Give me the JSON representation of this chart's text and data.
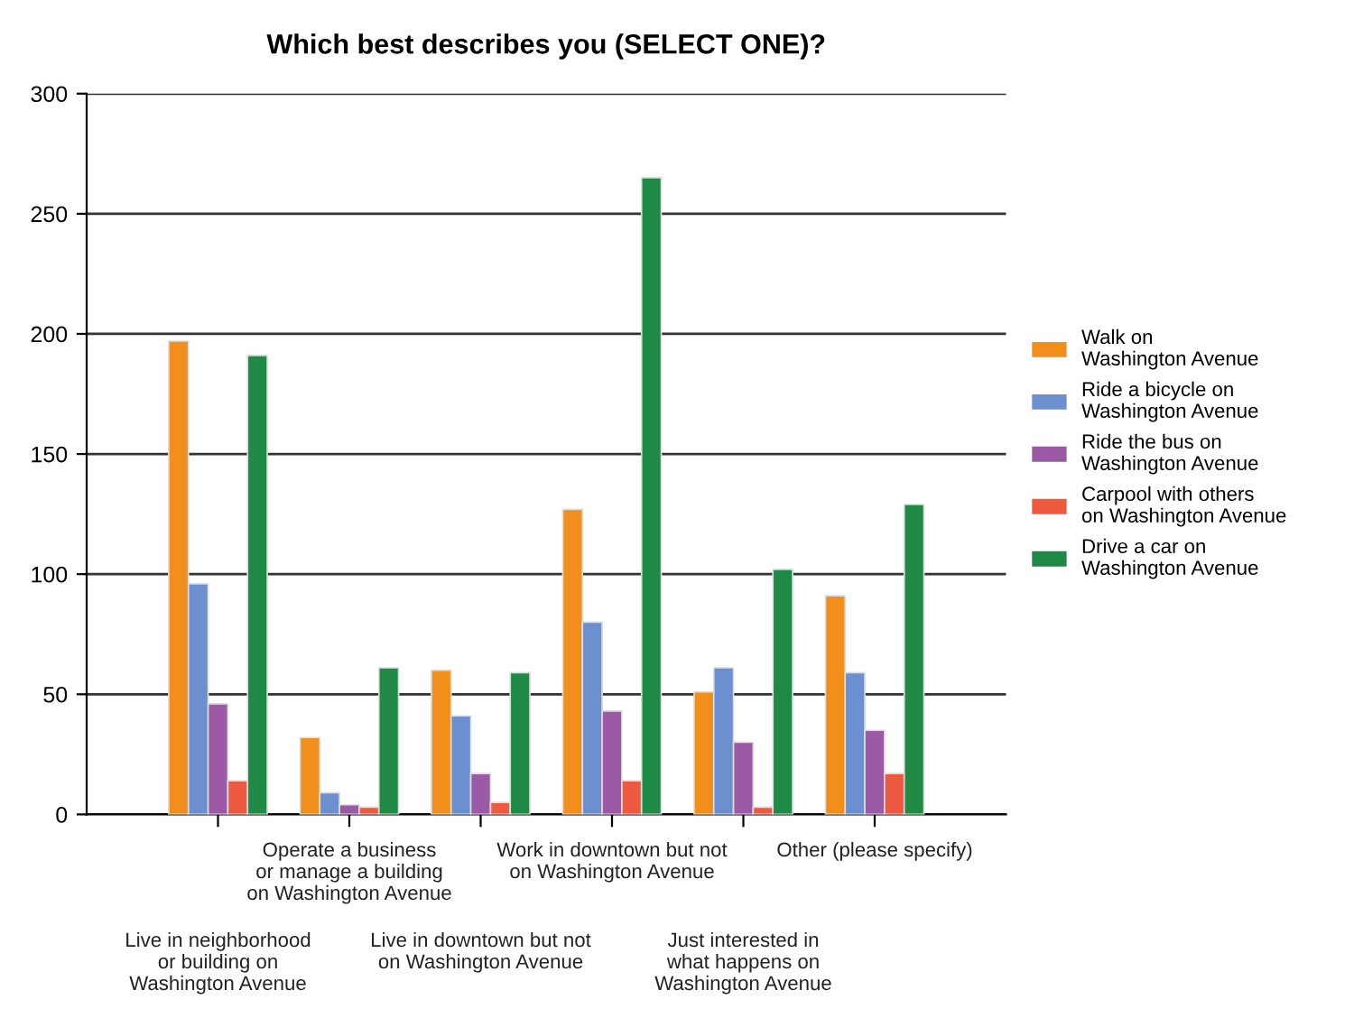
{
  "chart_data": {
    "type": "bar",
    "title": "Which best describes you (SELECT ONE)?",
    "categories": [
      "Live in neighborhood\nor building on\nWashington Avenue",
      "Operate a business\nor manage a building\non Washington Avenue",
      "Live in downtown but not\non Washington Avenue",
      "Work in downtown but not\non Washington Avenue",
      "Just interested in\nwhat happens on\nWashington Avenue",
      "Other (please specify)"
    ],
    "series": [
      {
        "name": "Walk on\nWashington Avenue",
        "color": "#f28e1c",
        "values": [
          197,
          32,
          60,
          127,
          51,
          91
        ]
      },
      {
        "name": "Ride a bicycle on\nWashington Avenue",
        "color": "#6b8fcf",
        "values": [
          96,
          9,
          41,
          80,
          61,
          59
        ]
      },
      {
        "name": "Ride the bus on\nWashington Avenue",
        "color": "#9b59a6",
        "values": [
          46,
          4,
          17,
          43,
          30,
          35
        ]
      },
      {
        "name": "Carpool with others\non Washington Avenue",
        "color": "#ee5a40",
        "values": [
          14,
          3,
          5,
          14,
          3,
          17
        ]
      },
      {
        "name": "Drive a car on\nWashington Avenue",
        "color": "#1e8a45",
        "values": [
          191,
          61,
          59,
          265,
          102,
          129
        ]
      }
    ],
    "ylim": [
      0,
      300
    ],
    "yticks": [
      0,
      50,
      100,
      150,
      200,
      250,
      300
    ],
    "grid": "y",
    "legend": "right"
  }
}
